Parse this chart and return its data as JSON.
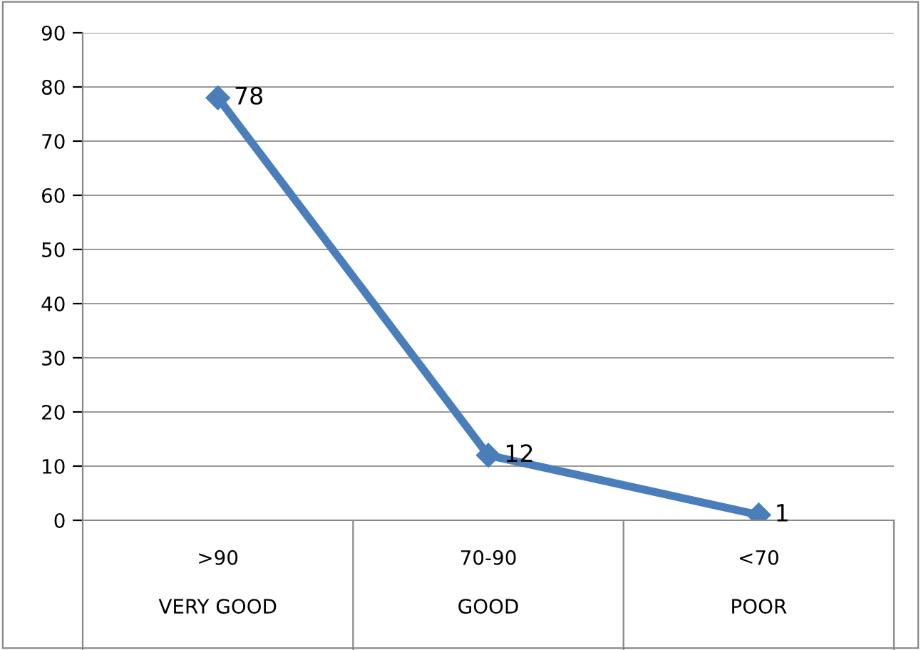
{
  "chart_data": {
    "type": "line",
    "categories": [
      ">90\nVERY GOOD",
      "70-90\nGOOD",
      "<70\nPOOR"
    ],
    "series": [
      {
        "color": "#4a7ebb",
        "values": [
          78,
          12,
          1
        ]
      }
    ],
    "ylim": [
      0,
      90
    ],
    "yticks": [
      0,
      10,
      20,
      30,
      40,
      50,
      60,
      70,
      80,
      90
    ],
    "grid": "y",
    "marker": "diamond",
    "line_style": "solid",
    "data_labels": true,
    "legend": false
  }
}
